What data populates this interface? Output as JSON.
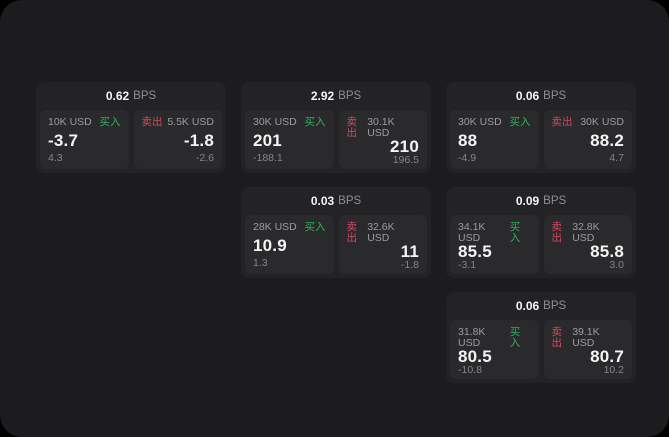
{
  "labels": {
    "bps_unit": "BPS",
    "buy": "买入",
    "sell": "卖出"
  },
  "colors": {
    "buy": "#2fb15c",
    "sell": "#d4485f"
  },
  "cards": [
    {
      "bps": "0.62",
      "buy": {
        "amount": "10K USD",
        "value": "-3.7",
        "delta": "4.3"
      },
      "sell": {
        "amount": "5.5K USD",
        "value": "-1.8",
        "delta": "-2.6"
      }
    },
    {
      "bps": "2.92",
      "buy": {
        "amount": "30K USD",
        "value": "201",
        "delta": "-188.1"
      },
      "sell": {
        "amount": "30.1K USD",
        "value": "210",
        "delta": "196.5"
      }
    },
    {
      "bps": "0.06",
      "buy": {
        "amount": "30K USD",
        "value": "88",
        "delta": "-4.9"
      },
      "sell": {
        "amount": "30K USD",
        "value": "88.2",
        "delta": "4.7"
      }
    },
    {
      "bps": "0.03",
      "buy": {
        "amount": "28K USD",
        "value": "10.9",
        "delta": "1.3"
      },
      "sell": {
        "amount": "32.6K USD",
        "value": "11",
        "delta": "-1.8"
      }
    },
    {
      "bps": "0.09",
      "buy": {
        "amount": "34.1K USD",
        "value": "85.5",
        "delta": "-3.1"
      },
      "sell": {
        "amount": "32.8K USD",
        "value": "85.8",
        "delta": "3.0"
      }
    },
    {
      "bps": "0.06",
      "buy": {
        "amount": "31.8K USD",
        "value": "80.5",
        "delta": "-10.8"
      },
      "sell": {
        "amount": "39.1K USD",
        "value": "80.7",
        "delta": "10.2"
      }
    }
  ]
}
